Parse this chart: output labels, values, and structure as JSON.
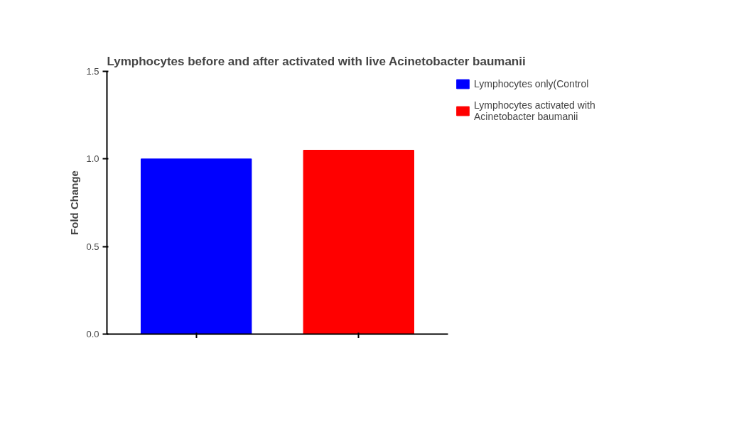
{
  "chart_data": {
    "type": "bar",
    "title": "Lymphocytes before and after activated with live Acinetobacter baumanii",
    "ylabel": "Fold Change",
    "categories": [
      null,
      null
    ],
    "stacked": true,
    "series": [
      {
        "name": "Lymphocytes only(Control",
        "color": "#0000ff",
        "values": [
          1.0,
          null
        ]
      },
      {
        "name": "Lymphocytes activated with Acinetobacter baumanii",
        "color": "#ff0000",
        "values": [
          null,
          1.05
        ]
      }
    ],
    "ylim": [
      0,
      1.5
    ],
    "yticks": [
      {
        "value": 0,
        "label": "0.0"
      },
      {
        "value": 0.5,
        "label": "0.5"
      },
      {
        "value": 1,
        "label": "1.0"
      },
      {
        "value": 1.5,
        "label": "1.5"
      }
    ],
    "legend": "right"
  }
}
